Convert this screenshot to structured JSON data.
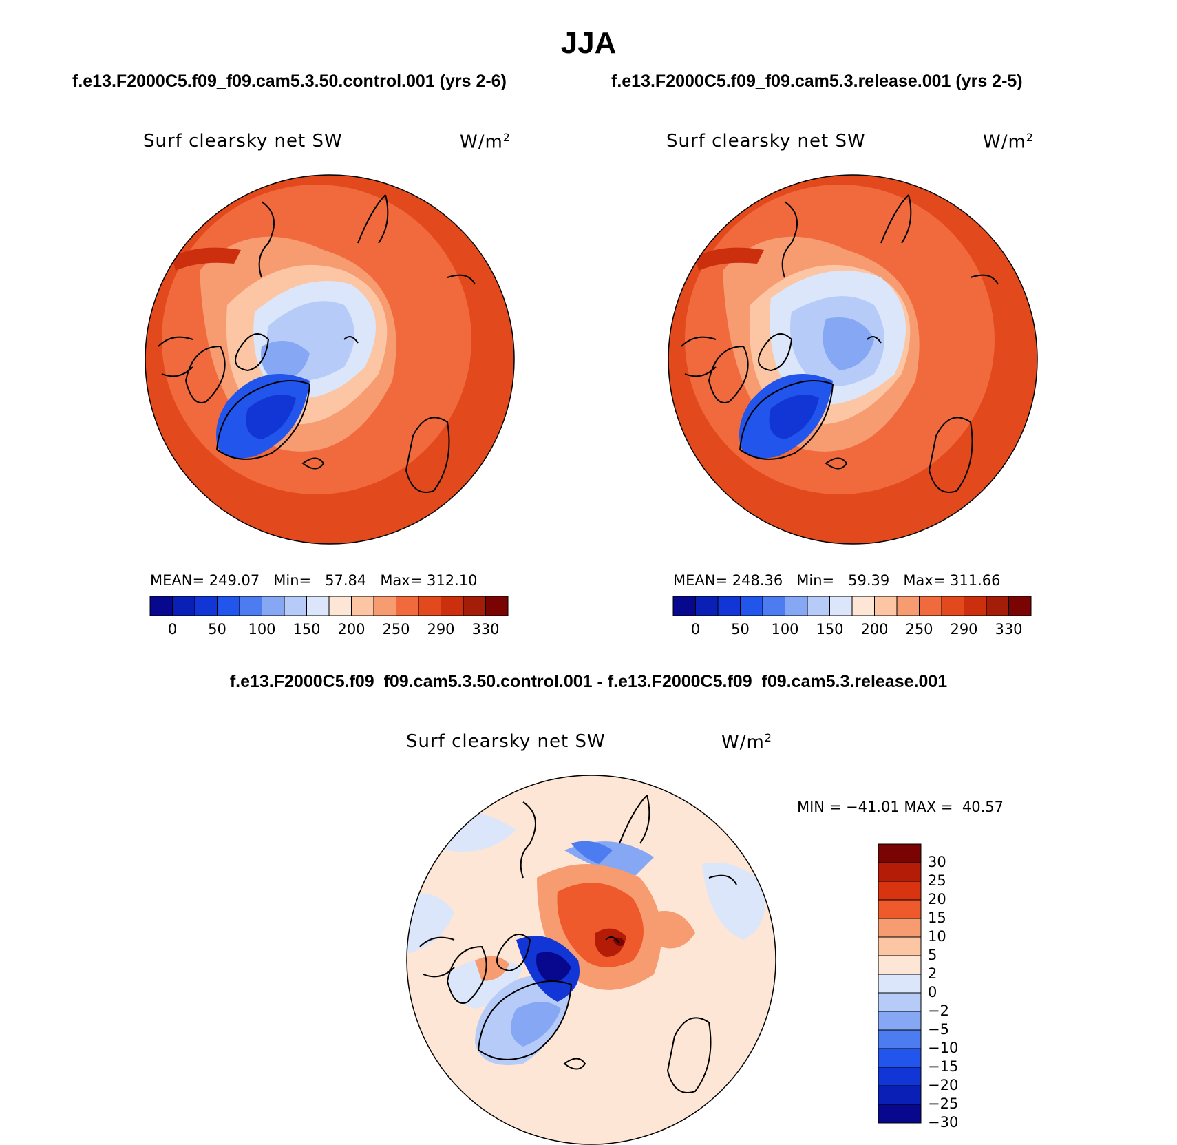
{
  "title": "JJA",
  "case1_title": "f.e13.F2000C5.f09_f09.cam5.3.50.control.001 (yrs 2-6)",
  "case2_title": "f.e13.F2000C5.f09_f09.cam5.3.release.001 (yrs 2-5)",
  "diff_title": "f.e13.F2000C5.f09_f09.cam5.3.50.control.001 - f.e13.F2000C5.f09_f09.cam5.3.release.001",
  "variable_label": "Surf clearsky net SW",
  "units_base": "W/m",
  "units_exp": "2",
  "panels": [
    {
      "mean_label": "MEAN=",
      "mean": "249.07",
      "min_label": "Min=",
      "min": "57.84",
      "max_label": "Max=",
      "max": "312.10"
    },
    {
      "mean_label": "MEAN=",
      "mean": "248.36",
      "min_label": "Min=",
      "min": "59.39",
      "max_label": "Max=",
      "max": "311.66"
    }
  ],
  "diff_stats": {
    "min_label": "MIN =",
    "min": "−41.01",
    "max_label": "MAX =",
    "max": "40.57"
  },
  "colorbar_top": {
    "colors": [
      "#08088f",
      "#0a1fb5",
      "#1236d6",
      "#2255ec",
      "#4d7cf0",
      "#86a7f3",
      "#b6cbf7",
      "#dbe6fb",
      "#fde6d5",
      "#fcc6a5",
      "#f79b71",
      "#f06a3d",
      "#e24a1e",
      "#cc2f0e",
      "#a41d08",
      "#7a0403"
    ],
    "tick_labels": [
      "0",
      "50",
      "100",
      "150",
      "200",
      "250",
      "290",
      "330"
    ]
  },
  "colorbar_diff": {
    "colors": [
      "#7a0403",
      "#b41c08",
      "#d8340f",
      "#ee5a2c",
      "#f79b71",
      "#fcc6a5",
      "#fde6d5",
      "#dbe6fb",
      "#b6cbf7",
      "#86a7f3",
      "#4d7cf0",
      "#2255ec",
      "#1236d6",
      "#0a1fb5",
      "#08088f"
    ],
    "tick_labels": [
      "30",
      "25",
      "20",
      "15",
      "10",
      "5",
      "2",
      "0",
      "−2",
      "−5",
      "−10",
      "−15",
      "−20",
      "−25",
      "−30"
    ]
  }
}
